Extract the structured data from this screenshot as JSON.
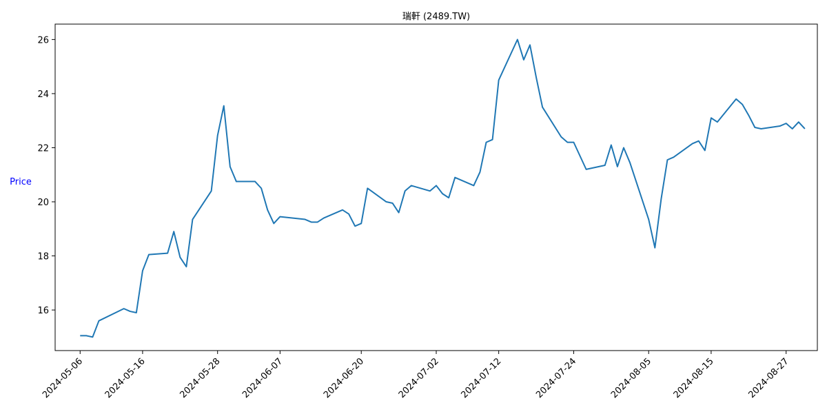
{
  "chart_data": {
    "type": "line",
    "title": "瑞軒 (2489.TW)",
    "xlabel": "",
    "ylabel": "Price",
    "ylim": [
      14.5,
      26.57
    ],
    "xlim": [
      "2024-05-02",
      "2024-09-01"
    ],
    "grid": false,
    "x_ticks": [
      "2024-05-06",
      "2024-05-16",
      "2024-05-28",
      "2024-06-07",
      "2024-06-20",
      "2024-07-02",
      "2024-07-12",
      "2024-07-24",
      "2024-08-05",
      "2024-08-15",
      "2024-08-27"
    ],
    "y_ticks": [
      16,
      18,
      20,
      22,
      24,
      26
    ],
    "colors": {
      "line": "#1f77b4",
      "ylabel": "#0000ff",
      "axis": "#000000"
    },
    "series": [
      {
        "x": [
          "2024-05-06",
          "2024-05-07",
          "2024-05-08",
          "2024-05-09",
          "2024-05-13",
          "2024-05-14",
          "2024-05-15",
          "2024-05-16",
          "2024-05-17",
          "2024-05-20",
          "2024-05-21",
          "2024-05-22",
          "2024-05-23",
          "2024-05-24",
          "2024-05-27",
          "2024-05-28",
          "2024-05-29",
          "2024-05-30",
          "2024-05-31",
          "2024-06-03",
          "2024-06-04",
          "2024-06-05",
          "2024-06-06",
          "2024-06-07",
          "2024-06-11",
          "2024-06-12",
          "2024-06-13",
          "2024-06-14",
          "2024-06-17",
          "2024-06-18",
          "2024-06-19",
          "2024-06-20",
          "2024-06-21",
          "2024-06-24",
          "2024-06-25",
          "2024-06-26",
          "2024-06-27",
          "2024-06-28",
          "2024-07-01",
          "2024-07-02",
          "2024-07-03",
          "2024-07-04",
          "2024-07-05",
          "2024-07-08",
          "2024-07-09",
          "2024-07-10",
          "2024-07-11",
          "2024-07-12",
          "2024-07-15",
          "2024-07-16",
          "2024-07-17",
          "2024-07-18",
          "2024-07-19",
          "2024-07-22",
          "2024-07-23",
          "2024-07-24",
          "2024-07-26",
          "2024-07-29",
          "2024-07-30",
          "2024-07-31",
          "2024-08-01",
          "2024-08-02",
          "2024-08-05",
          "2024-08-06",
          "2024-08-07",
          "2024-08-08",
          "2024-08-09",
          "2024-08-12",
          "2024-08-13",
          "2024-08-14",
          "2024-08-15",
          "2024-08-16",
          "2024-08-19",
          "2024-08-20",
          "2024-08-21",
          "2024-08-22",
          "2024-08-23",
          "2024-08-26",
          "2024-08-27",
          "2024-08-28",
          "2024-08-29",
          "2024-08-30"
        ],
        "values": [
          15.05,
          15.05,
          15.0,
          15.6,
          16.05,
          15.95,
          15.9,
          17.45,
          18.05,
          18.1,
          18.9,
          17.95,
          17.6,
          19.35,
          20.4,
          22.45,
          23.55,
          21.3,
          20.75,
          20.75,
          20.5,
          19.7,
          19.2,
          19.45,
          19.35,
          19.25,
          19.25,
          19.4,
          19.7,
          19.55,
          19.1,
          19.2,
          20.5,
          20.0,
          19.95,
          19.6,
          20.4,
          20.6,
          20.4,
          20.6,
          20.3,
          20.15,
          20.9,
          20.6,
          21.1,
          22.2,
          22.3,
          24.5,
          26.0,
          25.25,
          25.8,
          24.6,
          23.5,
          22.4,
          22.2,
          22.2,
          21.2,
          21.35,
          22.1,
          21.3,
          22.0,
          21.45,
          19.35,
          18.3,
          20.1,
          21.55,
          21.65,
          22.15,
          22.25,
          21.9,
          23.1,
          22.95,
          23.8,
          23.6,
          23.2,
          22.75,
          22.7,
          22.8,
          22.9,
          22.7,
          22.95,
          22.7
        ]
      }
    ]
  }
}
